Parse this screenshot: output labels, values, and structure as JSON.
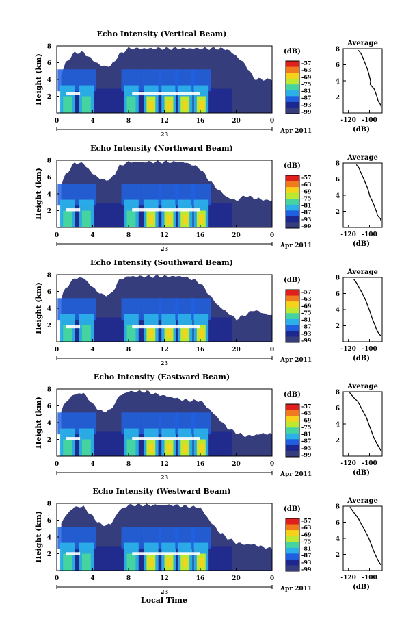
{
  "figure": {
    "xlabel": "Local Time",
    "date_label": "Apr 2011",
    "day_label": "23",
    "colorbar_unit": "(dB)",
    "colorbar_ticks": [
      "-57",
      "-63",
      "-69",
      "-75",
      "-81",
      "-87",
      "-93",
      "-99"
    ],
    "colorbar_colors": [
      "#e0201c",
      "#f07a1e",
      "#f7d21a",
      "#bde832",
      "#45d4a0",
      "#2bb0e8",
      "#2060e0",
      "#1c2890",
      "#363d7c"
    ]
  },
  "chart_data": [
    {
      "type": "heatmap",
      "title": "Echo Intensity (Vertical Beam)",
      "ylabel": "Height (km)",
      "xlim": [
        0,
        24
      ],
      "ylim": [
        0,
        8
      ],
      "xticks": [
        "0",
        "4",
        "8",
        "12",
        "16",
        "20",
        "0"
      ],
      "yticks": [
        "2",
        "4",
        "6",
        "8"
      ],
      "echo_top_km": [
        [
          0.5,
          4.6
        ],
        [
          1,
          6.0
        ],
        [
          2,
          7.2
        ],
        [
          3,
          7.2
        ],
        [
          4,
          6.3
        ],
        [
          5,
          5.6
        ],
        [
          6,
          5.6
        ],
        [
          7,
          7.0
        ],
        [
          8,
          7.7
        ],
        [
          9,
          7.7
        ],
        [
          10,
          7.7
        ],
        [
          11,
          7.7
        ],
        [
          12,
          7.7
        ],
        [
          13,
          7.7
        ],
        [
          14,
          7.7
        ],
        [
          15,
          7.7
        ],
        [
          16,
          7.7
        ],
        [
          17,
          7.7
        ],
        [
          18,
          7.7
        ],
        [
          19,
          7.6
        ],
        [
          20,
          6.8
        ],
        [
          21,
          5.8
        ],
        [
          22,
          4.1
        ],
        [
          23,
          4.0
        ],
        [
          24,
          4.0
        ]
      ],
      "columns_h": [
        1.2,
        3.3,
        8.3,
        10.5,
        12.5,
        14.3,
        16.1
      ],
      "bright_band_km": 2.3,
      "colorbar_unit": "(dB)",
      "average": {
        "title": "Average",
        "xlabel": "(dB)",
        "xlim": [
          -125,
          -88
        ],
        "xticks": [
          "-120",
          "-100"
        ],
        "yticks": [
          "2",
          "4",
          "6",
          "8"
        ],
        "profile": [
          [
            -110.5,
            7.8
          ],
          [
            -108.2,
            7.4
          ],
          [
            -106.4,
            6.9
          ],
          [
            -104.9,
            6.4
          ],
          [
            -103.3,
            5.9
          ],
          [
            -101.9,
            5.4
          ],
          [
            -100.7,
            4.9
          ],
          [
            -99.8,
            4.4
          ],
          [
            -98.9,
            3.9
          ],
          [
            -99.5,
            3.6
          ],
          [
            -97.7,
            3.3
          ],
          [
            -95.6,
            3.0
          ],
          [
            -94.5,
            2.6
          ],
          [
            -93.3,
            2.2
          ],
          [
            -92.6,
            1.9
          ],
          [
            -91.8,
            1.5
          ],
          [
            -89.8,
            1.1
          ],
          [
            -88.9,
            0.8
          ]
        ]
      }
    },
    {
      "type": "heatmap",
      "title": "Echo Intensity (Northward Beam)",
      "ylabel": "Height (km)",
      "xlim": [
        0,
        24
      ],
      "ylim": [
        0,
        8
      ],
      "xticks": [
        "0",
        "4",
        "8",
        "12",
        "16",
        "20",
        "0"
      ],
      "yticks": [
        "2",
        "4",
        "6",
        "8"
      ],
      "echo_top_km": [
        [
          0.5,
          5.1
        ],
        [
          1,
          6.3
        ],
        [
          2,
          7.7
        ],
        [
          3,
          7.6
        ],
        [
          4,
          6.4
        ],
        [
          5,
          5.7
        ],
        [
          6,
          5.7
        ],
        [
          7,
          7.3
        ],
        [
          8,
          7.8
        ],
        [
          9,
          7.8
        ],
        [
          10,
          7.8
        ],
        [
          11,
          7.8
        ],
        [
          12,
          7.8
        ],
        [
          13,
          7.8
        ],
        [
          14,
          7.8
        ],
        [
          15,
          7.5
        ],
        [
          16,
          7.0
        ],
        [
          17,
          5.6
        ],
        [
          18,
          4.5
        ],
        [
          19,
          3.6
        ],
        [
          20,
          3.2
        ],
        [
          21,
          3.8
        ],
        [
          22,
          3.5
        ],
        [
          23,
          3.3
        ],
        [
          24,
          3.2
        ]
      ],
      "columns_h": [
        1.2,
        3.3,
        8.3,
        10.5,
        12.5,
        14.3,
        16.1
      ],
      "bright_band_km": 2.1,
      "colorbar_unit": "(dB)",
      "average": {
        "title": "Average",
        "xlabel": "(dB)",
        "xlim": [
          -125,
          -88
        ],
        "xticks": [
          "-120",
          "-100"
        ],
        "yticks": [
          "2",
          "4",
          "6",
          "8"
        ],
        "profile": [
          [
            -112.5,
            7.8
          ],
          [
            -110.1,
            7.4
          ],
          [
            -108.5,
            6.9
          ],
          [
            -106.8,
            6.4
          ],
          [
            -105.1,
            5.9
          ],
          [
            -103.5,
            5.4
          ],
          [
            -101.9,
            4.9
          ],
          [
            -100.7,
            4.4
          ],
          [
            -99.7,
            3.9
          ],
          [
            -97.8,
            3.4
          ],
          [
            -96.6,
            3.0
          ],
          [
            -95.3,
            2.6
          ],
          [
            -94.1,
            2.2
          ],
          [
            -93.2,
            1.9
          ],
          [
            -92.5,
            1.5
          ],
          [
            -89.8,
            1.1
          ],
          [
            -88.9,
            0.8
          ]
        ]
      }
    },
    {
      "type": "heatmap",
      "title": "Echo Intensity (Southward Beam)",
      "ylabel": "Height (km)",
      "xlim": [
        0,
        24
      ],
      "ylim": [
        0,
        8
      ],
      "xticks": [
        "0",
        "4",
        "8",
        "12",
        "16",
        "20",
        "0"
      ],
      "yticks": [
        "2",
        "4",
        "6",
        "8"
      ],
      "echo_top_km": [
        [
          0.5,
          5.2
        ],
        [
          1,
          6.4
        ],
        [
          2,
          7.6
        ],
        [
          3,
          7.6
        ],
        [
          4,
          6.5
        ],
        [
          5,
          5.6
        ],
        [
          6,
          5.6
        ],
        [
          7,
          7.4
        ],
        [
          8,
          7.8
        ],
        [
          9,
          7.8
        ],
        [
          10,
          7.8
        ],
        [
          11,
          7.8
        ],
        [
          12,
          7.8
        ],
        [
          13,
          7.8
        ],
        [
          14,
          7.8
        ],
        [
          15,
          7.5
        ],
        [
          16,
          7.0
        ],
        [
          17,
          5.6
        ],
        [
          18,
          4.3
        ],
        [
          19,
          3.5
        ],
        [
          20,
          2.7
        ],
        [
          21,
          3.2
        ],
        [
          22,
          3.8
        ],
        [
          23,
          3.4
        ],
        [
          24,
          3.1
        ]
      ],
      "columns_h": [
        1.2,
        3.3,
        8.3,
        10.5,
        12.5,
        14.3,
        16.1
      ],
      "bright_band_km": 1.8,
      "colorbar_unit": "(dB)",
      "average": {
        "title": "Average",
        "xlabel": "(dB)",
        "xlim": [
          -125,
          -88
        ],
        "xticks": [
          "-120",
          "-100"
        ],
        "yticks": [
          "2",
          "4",
          "6",
          "8"
        ],
        "profile": [
          [
            -115.0,
            7.8
          ],
          [
            -112.3,
            7.3
          ],
          [
            -110.2,
            6.8
          ],
          [
            -108.0,
            6.3
          ],
          [
            -106.0,
            5.8
          ],
          [
            -104.1,
            5.3
          ],
          [
            -102.6,
            4.8
          ],
          [
            -101.1,
            4.3
          ],
          [
            -99.7,
            3.8
          ],
          [
            -98.5,
            3.3
          ],
          [
            -97.5,
            2.9
          ],
          [
            -95.9,
            2.4
          ],
          [
            -94.6,
            2.0
          ],
          [
            -93.6,
            1.6
          ],
          [
            -92.0,
            1.2
          ],
          [
            -90.4,
            0.9
          ],
          [
            -89.0,
            0.7
          ]
        ]
      }
    },
    {
      "type": "heatmap",
      "title": "Echo Intensity (Eastward Beam)",
      "ylabel": "Height (km)",
      "xlim": [
        0,
        24
      ],
      "ylim": [
        0,
        8
      ],
      "xticks": [
        "0",
        "4",
        "8",
        "12",
        "16",
        "20",
        "0"
      ],
      "yticks": [
        "2",
        "4",
        "6",
        "8"
      ],
      "echo_top_km": [
        [
          0.5,
          5.3
        ],
        [
          1,
          6.5
        ],
        [
          2,
          7.4
        ],
        [
          3,
          7.5
        ],
        [
          4,
          6.2
        ],
        [
          5,
          5.3
        ],
        [
          6,
          5.5
        ],
        [
          7,
          7.2
        ],
        [
          8,
          7.7
        ],
        [
          9,
          7.7
        ],
        [
          10,
          7.7
        ],
        [
          11,
          7.4
        ],
        [
          12,
          7.2
        ],
        [
          13,
          7.0
        ],
        [
          14,
          6.7
        ],
        [
          15,
          6.6
        ],
        [
          16,
          6.6
        ],
        [
          17,
          5.6
        ],
        [
          18,
          4.5
        ],
        [
          19,
          3.4
        ],
        [
          20,
          2.8
        ],
        [
          21,
          2.4
        ],
        [
          22,
          2.5
        ],
        [
          23,
          2.7
        ],
        [
          24,
          2.6
        ]
      ],
      "columns_h": [
        1.2,
        3.3,
        8.3,
        10.5,
        12.5,
        14.3,
        16.1
      ],
      "bright_band_km": 2.1,
      "colorbar_unit": "(dB)",
      "average": {
        "title": "Average",
        "xlabel": "(dB)",
        "xlim": [
          -125,
          -88
        ],
        "xticks": [
          "-120",
          "-100"
        ],
        "yticks": [
          "2",
          "4",
          "6",
          "8"
        ],
        "profile": [
          [
            -118.9,
            7.9
          ],
          [
            -117.0,
            7.6
          ],
          [
            -114.4,
            7.2
          ],
          [
            -111.2,
            6.8
          ],
          [
            -109.1,
            6.3
          ],
          [
            -107.0,
            5.8
          ],
          [
            -105.1,
            5.3
          ],
          [
            -103.0,
            4.8
          ],
          [
            -101.5,
            4.3
          ],
          [
            -100.2,
            3.8
          ],
          [
            -98.8,
            3.3
          ],
          [
            -97.3,
            2.8
          ],
          [
            -95.9,
            2.3
          ],
          [
            -94.3,
            1.9
          ],
          [
            -92.9,
            1.5
          ],
          [
            -90.9,
            1.1
          ],
          [
            -89.2,
            0.7
          ]
        ]
      }
    },
    {
      "type": "heatmap",
      "title": "Echo Intensity (Westward Beam)",
      "ylabel": "Height (km)",
      "xlim": [
        0,
        24
      ],
      "ylim": [
        0,
        8
      ],
      "xticks": [
        "0",
        "4",
        "8",
        "12",
        "16",
        "20",
        "0"
      ],
      "yticks": [
        "2",
        "4",
        "6",
        "8"
      ],
      "echo_top_km": [
        [
          0.5,
          5.5
        ],
        [
          1,
          6.6
        ],
        [
          2,
          7.6
        ],
        [
          3,
          7.6
        ],
        [
          4,
          6.4
        ],
        [
          5,
          5.4
        ],
        [
          6,
          5.5
        ],
        [
          7,
          7.2
        ],
        [
          8,
          7.8
        ],
        [
          9,
          7.8
        ],
        [
          10,
          7.8
        ],
        [
          11,
          7.8
        ],
        [
          12,
          7.8
        ],
        [
          13,
          7.8
        ],
        [
          14,
          7.7
        ],
        [
          15,
          7.6
        ],
        [
          16,
          7.5
        ],
        [
          17,
          6.0
        ],
        [
          18,
          4.7
        ],
        [
          19,
          3.9
        ],
        [
          20,
          3.3
        ],
        [
          21,
          3.1
        ],
        [
          22,
          3.1
        ],
        [
          23,
          2.8
        ],
        [
          24,
          2.6
        ]
      ],
      "columns_h": [
        1.2,
        3.3,
        8.3,
        10.5,
        12.5,
        14.3,
        16.1
      ],
      "bright_band_km": 2.0,
      "colorbar_unit": "(dB)",
      "average": {
        "title": "Average",
        "xlabel": "(dB)",
        "xlim": [
          -125,
          -88
        ],
        "xticks": [
          "-120",
          "-100"
        ],
        "yticks": [
          "2",
          "4",
          "6",
          "8"
        ],
        "profile": [
          [
            -118.5,
            7.9
          ],
          [
            -116.4,
            7.5
          ],
          [
            -114.3,
            7.1
          ],
          [
            -111.9,
            6.7
          ],
          [
            -109.9,
            6.3
          ],
          [
            -107.9,
            5.8
          ],
          [
            -105.7,
            5.3
          ],
          [
            -103.8,
            4.8
          ],
          [
            -101.7,
            4.3
          ],
          [
            -100.0,
            3.8
          ],
          [
            -98.6,
            3.3
          ],
          [
            -97.1,
            2.8
          ],
          [
            -95.6,
            2.3
          ],
          [
            -94.3,
            1.9
          ],
          [
            -92.8,
            1.5
          ],
          [
            -91.2,
            1.1
          ],
          [
            -89.3,
            0.7
          ]
        ]
      }
    }
  ]
}
